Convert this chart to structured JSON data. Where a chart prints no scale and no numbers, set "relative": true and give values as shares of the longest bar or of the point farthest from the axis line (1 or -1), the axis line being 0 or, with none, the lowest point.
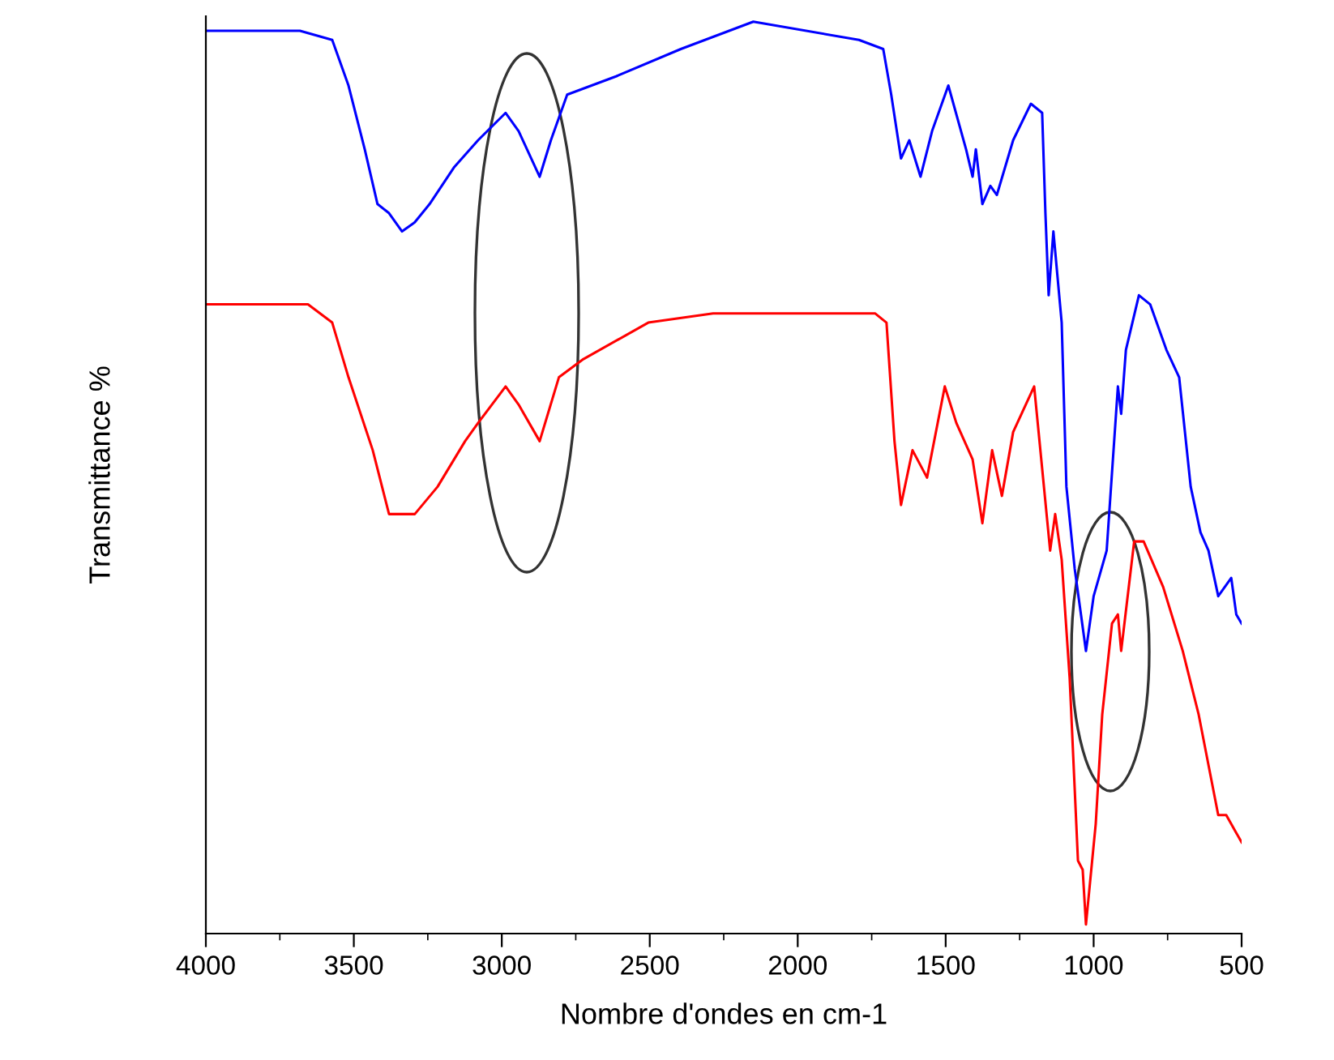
{
  "chart_data": {
    "type": "line",
    "relative": true,
    "xlabel": "Nombre d'ondes en cm-1",
    "ylabel": "Transmittance %",
    "xlim": [
      4000,
      500
    ],
    "xticks": [
      4000,
      3500,
      3000,
      2500,
      2000,
      1500,
      1000,
      500
    ],
    "grid": false,
    "legend": false,
    "marker": "none",
    "line_style": "solid",
    "series": [
      {
        "color": "#0000ff",
        "x": [
          4000,
          3682,
          3573,
          3518,
          3463,
          3420,
          3381,
          3337,
          3294,
          3244,
          3162,
          3080,
          2987,
          2943,
          2872,
          2834,
          2779,
          2614,
          2395,
          2150,
          1793,
          1711,
          1684,
          1651,
          1623,
          1585,
          1546,
          1491,
          1431,
          1409,
          1398,
          1376,
          1349,
          1327,
          1272,
          1212,
          1174,
          1163,
          1152,
          1136,
          1108,
          1092,
          1064,
          1026,
          1000,
          956,
          918,
          907,
          891,
          847,
          809,
          754,
          711,
          672,
          639,
          612,
          579,
          535,
          518,
          500
        ],
        "values": [
          0.99,
          0.99,
          0.98,
          0.93,
          0.86,
          0.8,
          0.79,
          0.77,
          0.78,
          0.8,
          0.84,
          0.87,
          0.9,
          0.88,
          0.83,
          0.87,
          0.92,
          0.94,
          0.97,
          1.0,
          0.98,
          0.97,
          0.92,
          0.85,
          0.87,
          0.83,
          0.88,
          0.93,
          0.86,
          0.83,
          0.86,
          0.8,
          0.82,
          0.81,
          0.87,
          0.91,
          0.9,
          0.79,
          0.7,
          0.77,
          0.67,
          0.49,
          0.4,
          0.31,
          0.37,
          0.42,
          0.6,
          0.57,
          0.64,
          0.7,
          0.69,
          0.64,
          0.61,
          0.49,
          0.44,
          0.42,
          0.37,
          0.39,
          0.35,
          0.34
        ]
      },
      {
        "color": "#ff0000",
        "x": [
          4000,
          3737,
          3655,
          3573,
          3518,
          3436,
          3381,
          3337,
          3294,
          3217,
          3124,
          3080,
          2987,
          2943,
          2872,
          2807,
          2724,
          2505,
          2286,
          1957,
          1738,
          1700,
          1673,
          1651,
          1612,
          1563,
          1503,
          1464,
          1409,
          1376,
          1343,
          1310,
          1272,
          1201,
          1174,
          1147,
          1130,
          1108,
          1081,
          1053,
          1037,
          1026,
          993,
          971,
          938,
          918,
          907,
          863,
          831,
          765,
          699,
          645,
          579,
          552,
          500
        ],
        "values": [
          0.69,
          0.69,
          0.69,
          0.67,
          0.61,
          0.53,
          0.46,
          0.46,
          0.46,
          0.49,
          0.54,
          0.56,
          0.6,
          0.58,
          0.54,
          0.61,
          0.63,
          0.67,
          0.68,
          0.68,
          0.68,
          0.67,
          0.54,
          0.47,
          0.53,
          0.5,
          0.6,
          0.56,
          0.52,
          0.45,
          0.53,
          0.48,
          0.55,
          0.6,
          0.51,
          0.42,
          0.46,
          0.41,
          0.28,
          0.08,
          0.07,
          0.01,
          0.12,
          0.24,
          0.34,
          0.35,
          0.31,
          0.43,
          0.43,
          0.38,
          0.31,
          0.24,
          0.13,
          0.13,
          0.1
        ]
      }
    ]
  }
}
